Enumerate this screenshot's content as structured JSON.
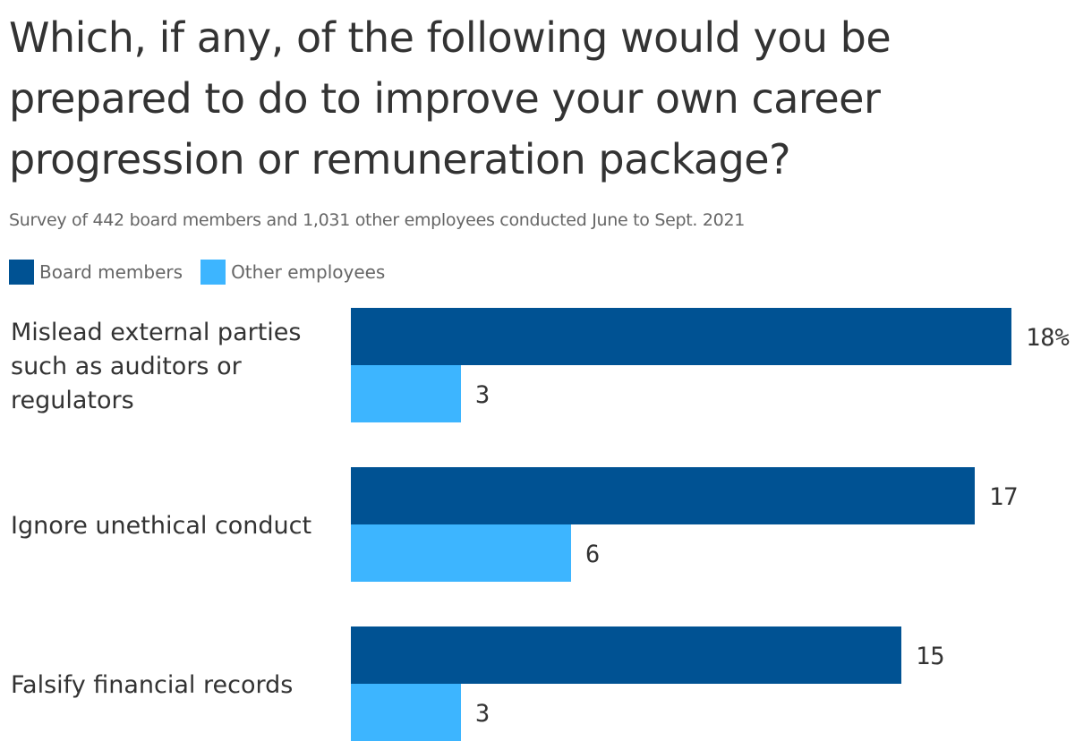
{
  "title": "Which, if any, of the following would you be prepared to do to improve your own career progression or remuneration package?",
  "subtitle": "Survey of 442 board members and 1,031 other employees conducted June to Sept. 2021",
  "colors": {
    "board": "#005293",
    "other": "#3db5ff"
  },
  "chart_data": {
    "type": "bar",
    "orientation": "horizontal",
    "categories": [
      [
        "Mislead external parties",
        "such as auditors or",
        "regulators"
      ],
      [
        "Ignore unethical conduct"
      ],
      [
        "Falsify financial records"
      ]
    ],
    "series": [
      {
        "name": "Board members",
        "values": [
          18,
          17,
          15
        ],
        "labels": [
          "18%",
          "17",
          "15"
        ]
      },
      {
        "name": "Other employees",
        "values": [
          3,
          6,
          3
        ],
        "labels": [
          "3",
          "6",
          "3"
        ]
      }
    ],
    "xlim": [
      0,
      18
    ],
    "legend": "top-left",
    "grid": false
  }
}
